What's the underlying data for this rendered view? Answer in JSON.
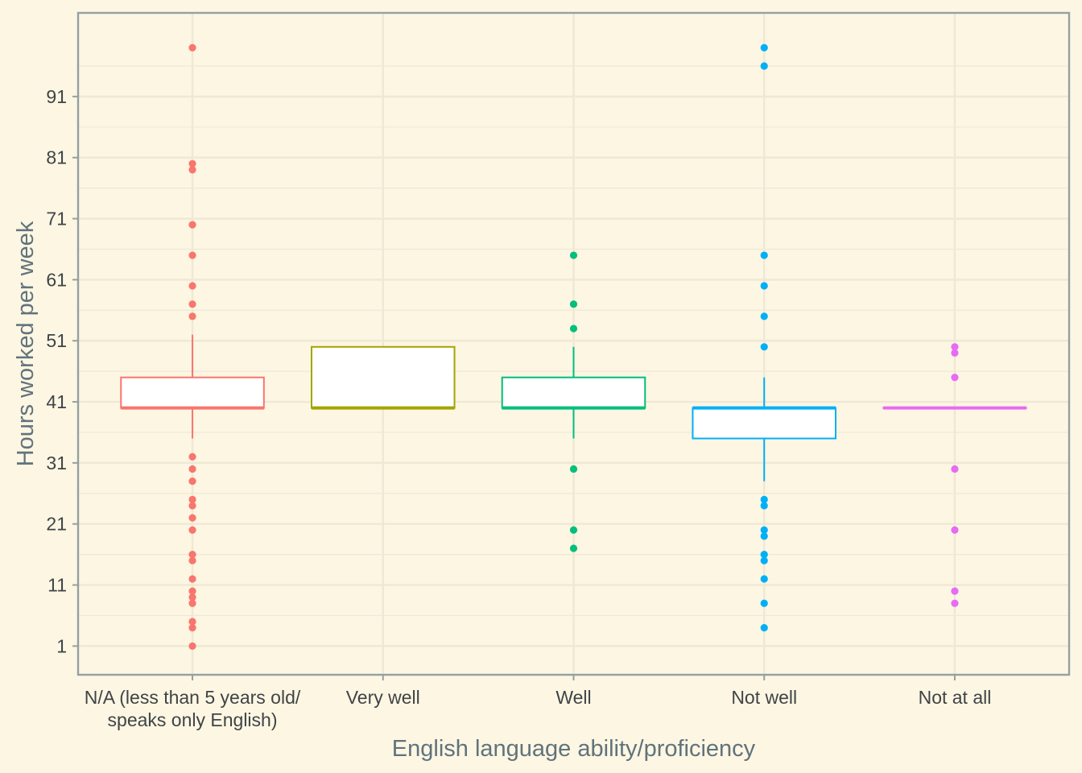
{
  "chart_data": {
    "type": "boxplot",
    "xlabel": "English language ability/proficiency",
    "ylabel": "Hours worked per week",
    "ylim": [
      -3.7,
      104.7
    ],
    "y_ticks": [
      1,
      11,
      21,
      31,
      41,
      51,
      61,
      71,
      81,
      91
    ],
    "y_tick_labels": [
      "1",
      "11",
      "21",
      "31",
      "41",
      "51",
      "61",
      "71",
      "81",
      "91"
    ],
    "grid": true,
    "legend": "none",
    "categories": [
      {
        "label": [
          "N/A (less than 5 years old/",
          "speaks only English)"
        ],
        "color": "#f8766d",
        "whisker_low": 35,
        "q1": 40,
        "median": 40,
        "q3": 45,
        "whisker_high": 52,
        "outliers": [
          99,
          80,
          79,
          70,
          65,
          60,
          57,
          55,
          32,
          30,
          28,
          25,
          24,
          22,
          20,
          16,
          15,
          12,
          10,
          9,
          8,
          5,
          4,
          1
        ]
      },
      {
        "label": [
          "Very well"
        ],
        "color": "#a3a500",
        "whisker_low": 40,
        "q1": 40,
        "median": 40,
        "q3": 50,
        "whisker_high": 50,
        "outliers": []
      },
      {
        "label": [
          "Well"
        ],
        "color": "#00bf7d",
        "whisker_low": 35,
        "q1": 40,
        "median": 40,
        "q3": 45,
        "whisker_high": 50,
        "outliers": [
          65,
          57,
          53,
          30,
          20,
          17
        ]
      },
      {
        "label": [
          "Not well"
        ],
        "color": "#00b0f6",
        "whisker_low": 28,
        "q1": 35,
        "median": 40,
        "q3": 40,
        "whisker_high": 45,
        "outliers": [
          99,
          96,
          65,
          60,
          55,
          50,
          25,
          24,
          20,
          19,
          16,
          15,
          12,
          8,
          4
        ]
      },
      {
        "label": [
          "Not at all"
        ],
        "color": "#e76bf3",
        "whisker_low": 40,
        "q1": 40,
        "median": 40,
        "q3": 40,
        "whisker_high": 40,
        "outliers": [
          50,
          49,
          45,
          30,
          20,
          10,
          8
        ]
      }
    ]
  }
}
